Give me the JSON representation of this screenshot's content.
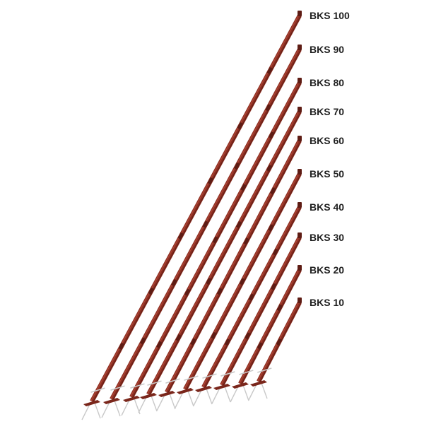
{
  "product_lineup": {
    "colors": {
      "tube": "#8e2f22",
      "tube_highlight": "#b14a3a",
      "tube_shadow": "#5e1c14",
      "base_plate": "#7a261b",
      "anchor": "#c9c9c9",
      "label": "#1f1f1f"
    },
    "props": [
      {
        "label": "BKS 100"
      },
      {
        "label": "BKS 90"
      },
      {
        "label": "BKS 80"
      },
      {
        "label": "BKS 70"
      },
      {
        "label": "BKS 60"
      },
      {
        "label": "BKS 50"
      },
      {
        "label": "BKS 40"
      },
      {
        "label": "BKS 30"
      },
      {
        "label": "BKS 20"
      },
      {
        "label": "BKS 10"
      }
    ]
  }
}
